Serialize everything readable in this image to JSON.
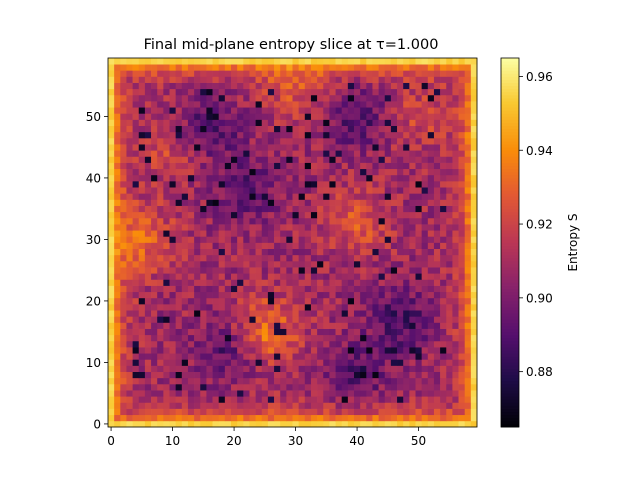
{
  "chart_data": {
    "type": "heatmap",
    "title": "Final mid-plane entropy slice at τ=1.000",
    "xlabel": "",
    "ylabel": "",
    "colorbar_label": "Entropy S",
    "colormap": "inferno",
    "grid_size": [
      60,
      60
    ],
    "xlim": [
      -0.5,
      59.5
    ],
    "ylim": [
      -0.5,
      59.5
    ],
    "x_ticks": [
      0,
      10,
      20,
      30,
      40,
      50
    ],
    "y_ticks": [
      0,
      10,
      20,
      30,
      40,
      50
    ],
    "x_tick_labels": [
      "0",
      "10",
      "20",
      "30",
      "40",
      "50"
    ],
    "y_tick_labels": [
      "0",
      "10",
      "20",
      "30",
      "40",
      "50"
    ],
    "value_range": [
      0.865,
      0.965
    ],
    "colorbar_ticks": [
      0.88,
      0.9,
      0.92,
      0.94,
      0.96
    ],
    "colorbar_tick_labels": [
      "0.88",
      "0.90",
      "0.92",
      "0.94",
      "0.96"
    ],
    "field_features": {
      "boundary_value": 0.955,
      "interior_mean": 0.908,
      "warm_spots": [
        [
          25,
          15,
          0.935
        ],
        [
          40,
          33,
          0.925
        ],
        [
          10,
          45,
          0.922
        ],
        [
          30,
          55,
          0.925
        ],
        [
          5,
          30,
          0.93
        ],
        [
          50,
          50,
          0.92
        ]
      ],
      "cool_spots": [
        [
          16,
          48,
          0.885
        ],
        [
          40,
          50,
          0.888
        ],
        [
          22,
          38,
          0.89
        ],
        [
          47,
          17,
          0.886
        ],
        [
          19,
          12,
          0.888
        ],
        [
          40,
          8,
          0.89
        ]
      ]
    }
  }
}
